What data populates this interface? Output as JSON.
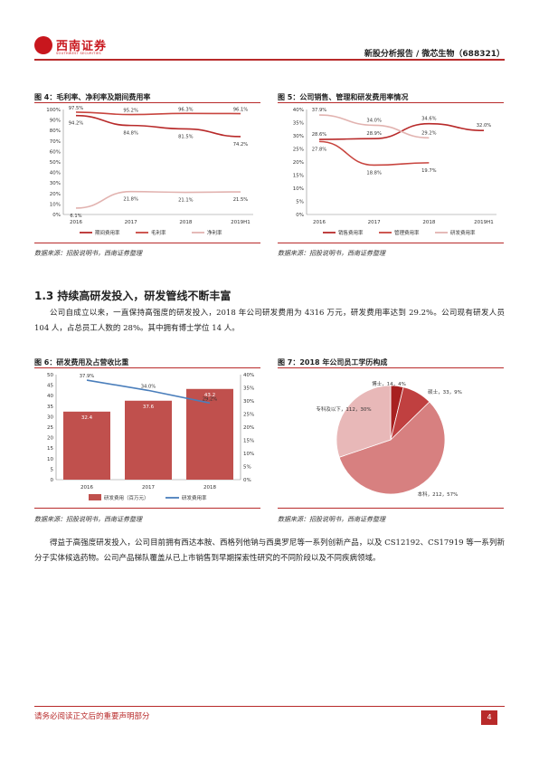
{
  "header": {
    "brand_name": "西南证券",
    "brand_sub": "SOUTHWEST SECURITIES",
    "report_title": "新股分析报告 / 微芯生物（688321）"
  },
  "figures": {
    "fig4": {
      "title": "图 4：毛利率、净利率及期间费用率",
      "source": "数据来源：招股说明书，西南证券整理"
    },
    "fig5": {
      "title": "图 5：公司销售、管理和研发费用率情况",
      "source": "数据来源：招股说明书，西南证券整理"
    },
    "fig6": {
      "title": "图 6：研发费用及占营收比重",
      "source": "数据来源：招股说明书，西南证券整理"
    },
    "fig7": {
      "title": "图 7：2018 年公司员工学历构成",
      "source": "数据来源：招股说明书，西南证券整理"
    }
  },
  "section": {
    "title": "1.3 持续高研发投入，研发管线不断丰富",
    "para1": "公司自成立以来，一直保持高强度的研发投入，2018 年公司研发费用为 4316 万元，研发费用率达到 29.2%。公司现有研发人员 104 人，占总员工人数的 28%。其中拥有博士学位 14 人。",
    "para2": "得益于高强度研发投入，公司目前拥有西达本胺、西格列他钠与西奥罗尼等一系列创新产品，以及 CS12192、CS17919 等一系列新分子实体候选药物。公司产品梯队覆盖从已上市销售到早期探索性研究的不同阶段以及不同疾病领域。"
  },
  "footer": {
    "disclaimer": "请务必阅读正文后的重要声明部分",
    "page": "4"
  },
  "chart_data": [
    {
      "id": "fig4",
      "type": "line",
      "categories": [
        "2016",
        "2017",
        "2018",
        "2019H1"
      ],
      "ylim": [
        0,
        100
      ],
      "yticks": [
        "0%",
        "10%",
        "20%",
        "30%",
        "40%",
        "50%",
        "60%",
        "70%",
        "80%",
        "90%",
        "100%"
      ],
      "series": [
        {
          "name": "期间费用率",
          "values": [
            94.2,
            84.8,
            81.5,
            74.2
          ],
          "labels": [
            "94.2%",
            "84.8%",
            "81.5%",
            "74.2%"
          ],
          "color": "#b82a2a"
        },
        {
          "name": "毛利率",
          "values": [
            97.5,
            95.2,
            96.3,
            96.1
          ],
          "labels": [
            "97.5%",
            "95.2%",
            "96.3%",
            "96.1%"
          ],
          "color": "#c8453f"
        },
        {
          "name": "净利率",
          "values": [
            6.1,
            21.8,
            21.1,
            21.5
          ],
          "labels": [
            "6.1%",
            "21.8%",
            "21.1%",
            "21.5%"
          ],
          "color": "#e2b3b0"
        }
      ]
    },
    {
      "id": "fig5",
      "type": "line",
      "categories": [
        "2016",
        "2017",
        "2018",
        "2019H1"
      ],
      "ylim": [
        0,
        40
      ],
      "yticks": [
        "0%",
        "5%",
        "10%",
        "15%",
        "20%",
        "25%",
        "30%",
        "35%",
        "40%"
      ],
      "series": [
        {
          "name": "销售费用率",
          "values": [
            28.6,
            28.9,
            34.6,
            32.0
          ],
          "labels": [
            "28.6%",
            "28.9%",
            "34.6%",
            "32.0%"
          ],
          "color": "#b82a2a"
        },
        {
          "name": "管理费用率",
          "values": [
            27.8,
            18.8,
            19.7,
            null
          ],
          "labels": [
            "27.8%",
            "18.8%",
            "19.7%",
            ""
          ],
          "color": "#c8453f"
        },
        {
          "name": "研发费用率",
          "values": [
            37.9,
            34.0,
            29.2,
            null
          ],
          "labels": [
            "37.9%",
            "34.0%",
            "29.2%",
            ""
          ],
          "color": "#e2b3b0"
        }
      ]
    },
    {
      "id": "fig6",
      "type": "bar",
      "categories": [
        "2016",
        "2017",
        "2018"
      ],
      "ylim": [
        0,
        50
      ],
      "y2lim": [
        0,
        40
      ],
      "yticks": [
        "0",
        "5",
        "10",
        "15",
        "20",
        "25",
        "30",
        "35",
        "40",
        "45",
        "50"
      ],
      "y2ticks": [
        "0%",
        "5%",
        "10%",
        "15%",
        "20%",
        "25%",
        "30%",
        "35%",
        "40%"
      ],
      "series": [
        {
          "name": "研发费用（百万元）",
          "values": [
            32.4,
            37.6,
            43.2
          ],
          "labels": [
            "32.4",
            "37.6",
            "43.2"
          ],
          "color": "#c0504d"
        },
        {
          "name": "研发费用率",
          "values": [
            37.9,
            34.0,
            29.2
          ],
          "labels": [
            "37.9%",
            "34.0%",
            "29.2%"
          ],
          "color": "#4a7ebb"
        }
      ]
    },
    {
      "id": "fig7",
      "type": "pie",
      "slices": [
        {
          "name": "博士",
          "value": 14,
          "pct": 4,
          "label": "博士，14，4%",
          "color": "#a82020"
        },
        {
          "name": "硕士",
          "value": 33,
          "pct": 9,
          "label": "硕士，33，9%",
          "color": "#c04040"
        },
        {
          "name": "本科",
          "value": 212,
          "pct": 57,
          "label": "本科，212，57%",
          "color": "#d78080"
        },
        {
          "name": "专科及以下",
          "value": 112,
          "pct": 30,
          "label": "专科及以下，112，30%",
          "color": "#e8b8b8"
        }
      ]
    }
  ]
}
